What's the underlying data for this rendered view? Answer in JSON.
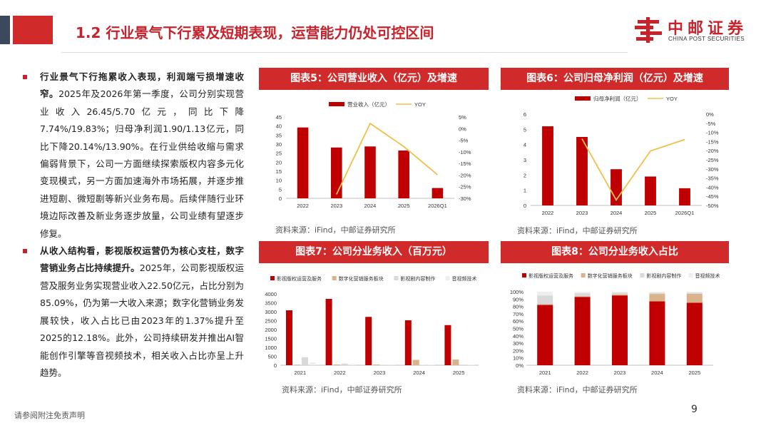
{
  "header": {
    "title": "1.2 行业景气下行累及短期表现，运营能力仍处可控区间"
  },
  "logo": {
    "name_cn": "中邮证券",
    "name_en": "CHINA POST SECURITIES",
    "color": "#c8232c"
  },
  "body": {
    "paragraphs": [
      {
        "bold": "行业景气下行拖累收入表现，利润端亏损增速收窄。",
        "text": "2025年及2026年第一季度，公司分别实现营业收入26.45/5.70亿元，同比下降7.74%/19.83%；归母净利润1.90/1.13亿元，同比下降20.14%/13.90%。在行业供给收缩与需求偏弱背景下，公司一方面继续探索版权内容多元化变现模式，另一方面加速海外市场拓展，并逐步推进短剧、微短剧等新兴业务布局。后续伴随行业环境边际改善及新业务逐步放量，公司业绩有望逐步修复。"
      },
      {
        "bold": "从收入结构看，影视版权运营仍为核心支柱，数字营销业务占比持续提升。",
        "text": "2025年，公司影视版权运营及服务业务实现营业收入22.50亿元，占比分别为85.09%，仍为第一大收入来源；数字化营销业务发展较快，收入占比已由2023年的1.37%提升至2025的12.18%。此外，公司持续研发并推出AI智能创作引擎等音视频技术，相关收入占比亦呈上升趋势。"
      }
    ]
  },
  "charts": {
    "c5": {
      "title": "图表5：公司营业收入（亿元）及增速",
      "source": "资料来源：iFind，中邮证券研究所"
    },
    "c6": {
      "title": "图表6：公司归母净利润（亿元）及增速",
      "source": "资料来源：iFind，中邮证券研究所"
    },
    "c7": {
      "title": "图表7：公司分业务收入（百万元）",
      "source": "资料来源：iFind，中邮证券研究所"
    },
    "c8": {
      "title": "图表8：公司分业务收入占比",
      "source": "资料来源：iFind，中邮证券研究所"
    }
  },
  "chart_data": [
    {
      "id": "c5",
      "type": "bar+line",
      "categories": [
        "2022",
        "2023",
        "2024",
        "2025",
        "2026Q1"
      ],
      "series": [
        {
          "name": "营业收入（亿元）",
          "type": "bar",
          "axis": "left",
          "color": "#c00000",
          "values": [
            39.2,
            28.1,
            28.7,
            26.45,
            5.7
          ]
        },
        {
          "name": "YOY",
          "type": "line",
          "axis": "right",
          "color": "#f0c04c",
          "values": [
            null,
            -28.3,
            2.2,
            -7.74,
            -19.83
          ]
        }
      ],
      "ylim_left": [
        0,
        45
      ],
      "yticks_left": [
        0,
        5,
        10,
        15,
        20,
        25,
        30,
        35,
        40,
        45
      ],
      "ylim_right": [
        -30,
        5
      ],
      "yticks_right": [
        5,
        0,
        -5,
        -10,
        -15,
        -20,
        -25,
        -30
      ],
      "ytick_labels_right": [
        "5%",
        "0%",
        "-5%",
        "-10%",
        "-15%",
        "-20%",
        "-25%",
        "-30%"
      ],
      "legend": "top",
      "grid": false
    },
    {
      "id": "c6",
      "type": "bar+line",
      "categories": [
        "2022",
        "2023",
        "2024",
        "2025",
        "2026Q1"
      ],
      "series": [
        {
          "name": "归母净利润（亿元）",
          "type": "bar",
          "axis": "left",
          "color": "#c00000",
          "values": [
            5.2,
            4.5,
            2.38,
            1.9,
            1.13
          ]
        },
        {
          "name": "YOY",
          "type": "line",
          "axis": "right",
          "color": "#f0c04c",
          "values": [
            null,
            -13.5,
            -47.0,
            -20.14,
            -13.9
          ]
        }
      ],
      "ylim_left": [
        0,
        6
      ],
      "yticks_left": [
        0,
        1,
        2,
        3,
        4,
        5,
        6
      ],
      "ylim_right": [
        -50,
        0
      ],
      "yticks_right": [
        0,
        -5,
        -10,
        -15,
        -20,
        -25,
        -30,
        -35,
        -40,
        -45,
        -50
      ],
      "ytick_labels_right": [
        "0%",
        "-5%",
        "-10%",
        "-15%",
        "-20%",
        "-25%",
        "-30%",
        "-35%",
        "-40%",
        "-45%",
        "-50%"
      ],
      "legend": "top",
      "grid": false
    },
    {
      "id": "c7",
      "type": "bar",
      "categories": [
        "2021",
        "2022",
        "2023",
        "2024",
        "2025"
      ],
      "series": [
        {
          "name": "影视版权运营及服务",
          "color": "#c00000",
          "values": [
            3080,
            3720,
            2710,
            2520,
            2250
          ]
        },
        {
          "name": "数字化营销服务板块",
          "color": "#d9b38c",
          "values": [
            30,
            40,
            40,
            300,
            322
          ]
        },
        {
          "name": "影视剧内容制作",
          "color": "#d9d9d9",
          "values": [
            450,
            90,
            15,
            20,
            30
          ]
        },
        {
          "name": "音视频技术",
          "color": "#eeeeee",
          "values": [
            150,
            60,
            10,
            15,
            40
          ]
        }
      ],
      "ylim": [
        0,
        4000
      ],
      "yticks": [
        0,
        500,
        1000,
        1500,
        2000,
        2500,
        3000,
        3500,
        4000
      ],
      "legend": "top",
      "grid": false
    },
    {
      "id": "c8",
      "type": "stacked-bar-percent",
      "categories": [
        "2021",
        "2022",
        "2023",
        "2024",
        "2025"
      ],
      "series": [
        {
          "name": "影视版权运营及服务",
          "color": "#c00000",
          "values": [
            82,
            93,
            95,
            87,
            85.09
          ]
        },
        {
          "name": "数字化营销服务板块",
          "color": "#d9b38c",
          "values": [
            1,
            1,
            1.37,
            10,
            12.18
          ]
        },
        {
          "name": "影视剧内容制作",
          "color": "#d9d9d9",
          "values": [
            12,
            4,
            2.5,
            1.5,
            1.5
          ]
        },
        {
          "name": "音视频技术",
          "color": "#eeeeee",
          "values": [
            5,
            2,
            1.13,
            1.5,
            1.23
          ]
        }
      ],
      "ylim": [
        0,
        100
      ],
      "yticks": [
        0,
        10,
        20,
        30,
        40,
        50,
        60,
        70,
        80,
        90,
        100
      ],
      "ytick_labels": [
        "0%",
        "10%",
        "20%",
        "30%",
        "40%",
        "50%",
        "60%",
        "70%",
        "80%",
        "90%",
        "100%"
      ],
      "legend": "top",
      "grid": false
    }
  ],
  "footer": {
    "disclaimer": "请参阅附注免责声明",
    "page": "9"
  }
}
